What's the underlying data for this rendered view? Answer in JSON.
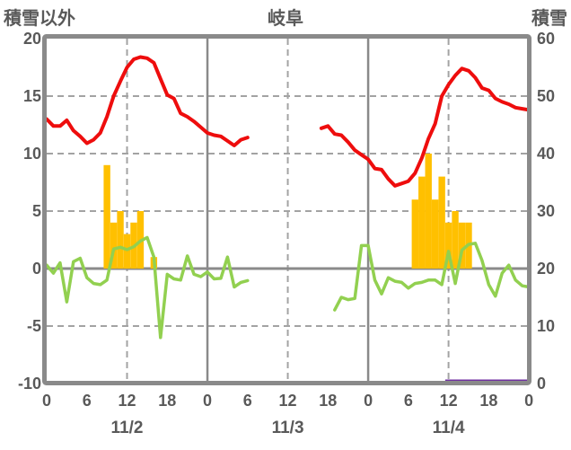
{
  "header": {
    "left_axis_title": "積雪以外",
    "title": "岐阜",
    "right_axis_title": "積雪"
  },
  "chart_data": {
    "type": "composite",
    "title": "岐阜",
    "station": "岐阜",
    "left_axis": {
      "label": "積雪以外",
      "ticks": [
        20,
        15,
        10,
        5,
        0,
        -5,
        -10
      ],
      "range": [
        -10,
        20
      ],
      "dashed_gridline_values": [
        15,
        10,
        5,
        -5
      ],
      "zero_line_value": 0
    },
    "right_axis": {
      "label": "積雪",
      "ticks": [
        60,
        50,
        40,
        30,
        20,
        10,
        0
      ],
      "range": [
        0,
        60
      ]
    },
    "x_axis": {
      "unit": "hours from 11/2 00:00",
      "total_hours": 72,
      "tick_interval_hours": 6,
      "hour_tick_labels": [
        "0",
        "6",
        "12",
        "18",
        "0",
        "6",
        "12",
        "18",
        "0",
        "6",
        "12",
        "18",
        "0"
      ],
      "day_labels": [
        "11/2",
        "11/3",
        "11/4"
      ],
      "noon_dashed_gridline_hours": [
        12,
        36,
        60
      ],
      "midnight_solid_gridline_hours": [
        24,
        48
      ]
    },
    "series": [
      {
        "name": "red_line",
        "type": "line",
        "axis": "left",
        "color": "#ee0d0d",
        "note": "hourly values, data gap 11/3 07:00-16:00",
        "values": [
          13.0,
          12.4,
          12.4,
          12.9,
          12.0,
          11.5,
          10.9,
          11.2,
          11.8,
          13.2,
          15.0,
          16.3,
          17.5,
          18.2,
          18.4,
          18.3,
          17.9,
          16.5,
          15.1,
          14.8,
          13.5,
          13.2,
          12.8,
          12.3,
          11.8,
          11.6,
          11.5,
          11.1,
          10.7,
          11.2,
          11.4,
          null,
          null,
          null,
          null,
          null,
          null,
          null,
          null,
          null,
          null,
          12.2,
          12.4,
          11.7,
          11.6,
          11.0,
          10.3,
          9.9,
          9.5,
          8.7,
          8.6,
          7.8,
          7.2,
          7.4,
          7.6,
          8.3,
          9.6,
          11.3,
          12.6,
          15.0,
          16.0,
          16.8,
          17.4,
          17.2,
          16.6,
          15.7,
          15.5,
          14.8,
          14.5,
          14.3,
          14.0,
          13.9,
          13.8
        ]
      },
      {
        "name": "green_line",
        "type": "line",
        "axis": "left",
        "color": "#92d050",
        "note": "hourly values, data gap 11/3 07:00-18:00",
        "values": [
          0.3,
          -0.4,
          0.5,
          -2.9,
          0.6,
          0.9,
          -0.8,
          -1.3,
          -1.4,
          -1.0,
          1.7,
          1.85,
          1.65,
          1.9,
          2.4,
          2.7,
          1.0,
          -6.0,
          -0.5,
          -0.9,
          -1.0,
          1.1,
          -0.5,
          -0.7,
          -0.3,
          -0.9,
          -0.85,
          1.0,
          -1.6,
          -1.2,
          -1.05,
          null,
          null,
          null,
          null,
          null,
          null,
          null,
          null,
          null,
          null,
          null,
          null,
          -3.6,
          -2.5,
          -2.7,
          -2.6,
          2.0,
          2.0,
          -1.0,
          -2.2,
          -0.8,
          -1.1,
          -1.2,
          -1.7,
          -1.3,
          -1.2,
          -1.0,
          -1.0,
          -1.4,
          1.5,
          -1.3,
          1.6,
          2.1,
          2.2,
          0.7,
          -1.4,
          -2.4,
          -0.4,
          0.3,
          -1.0,
          -1.5,
          -1.6
        ]
      },
      {
        "name": "orange_bars",
        "type": "bar",
        "axis": "left",
        "color": "#ffc000",
        "values_by_hour": {
          "9": 9,
          "10": 4,
          "11": 5,
          "12": 3,
          "13": 4,
          "14": 5,
          "16": 1,
          "55": 6,
          "56": 8,
          "57": 10,
          "58": 6,
          "59": 8,
          "60": 4,
          "61": 5,
          "62": 4,
          "63": 4
        }
      },
      {
        "name": "purple_snow_line",
        "type": "line",
        "axis": "right",
        "color": "#7030a0",
        "segment": {
          "from_hour": 59.5,
          "to_hour": 72,
          "value": 0
        }
      }
    ],
    "colors": {
      "axis_border": "#8a8a8a",
      "grid_dashed": "#a3a3a3",
      "zero_line": "#8a8a8a",
      "labels": "#595959",
      "background": "#ffffff"
    }
  }
}
